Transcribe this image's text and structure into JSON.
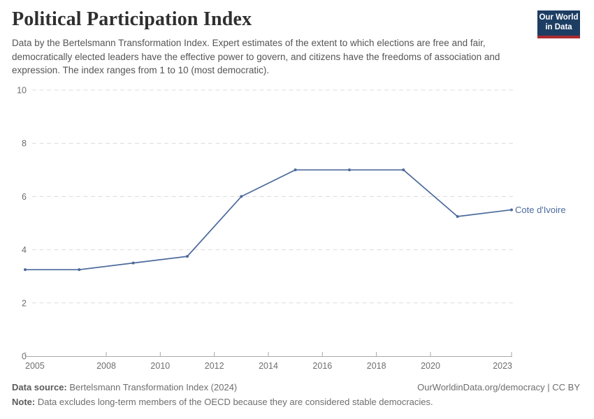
{
  "header": {
    "title": "Political Participation Index",
    "subtitle": "Data by the Bertelsmann Transformation Index. Expert estimates of the extent to which elections are free and fair, democratically elected leaders have the effective power to govern, and citizens have the freedoms of association and expression. The index ranges from 1 to 10 (most democratic)."
  },
  "logo": {
    "line1": "Our World",
    "line2": "in Data"
  },
  "chart_data": {
    "type": "line",
    "title": "Political Participation Index",
    "x": [
      2005,
      2007,
      2009,
      2011,
      2013,
      2015,
      2017,
      2019,
      2021,
      2023
    ],
    "series": [
      {
        "name": "Cote d'Ivoire",
        "color": "#4C6A9C",
        "values": [
          3.25,
          3.25,
          3.5,
          3.75,
          6,
          7,
          7,
          7,
          5.25,
          5.5
        ]
      }
    ],
    "x_ticks": [
      2005,
      2008,
      2010,
      2012,
      2014,
      2016,
      2018,
      2020,
      2023
    ],
    "y_ticks": [
      0,
      2,
      4,
      6,
      8,
      10
    ],
    "xlim": [
      2005,
      2023
    ],
    "ylim": [
      0,
      10
    ],
    "grid": "horizontal-dashed",
    "legend_position": "line-end-label"
  },
  "footer": {
    "source_label": "Data source:",
    "source_value": " Bertelsmann Transformation Index (2024)",
    "rights": "OurWorldinData.org/democracy | CC BY",
    "note_label": "Note:",
    "note_value": " Data excludes long-term members of the OECD because they are considered stable democracies."
  },
  "colors": {
    "line": "#4C6A9C",
    "grid": "#dcdcdc",
    "axis": "#a8a8a8",
    "tick_label": "#6e6e6e",
    "logo_bg": "#1d3d63",
    "logo_stripe": "#aa2b30"
  }
}
